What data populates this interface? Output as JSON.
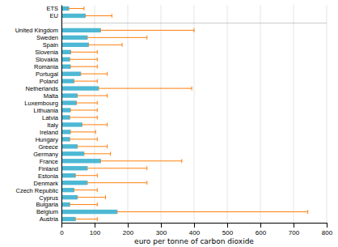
{
  "chart_data": {
    "type": "bar",
    "orientation": "horizontal",
    "categories": [
      "ETS",
      "EU",
      "United Kingdom",
      "Sweden",
      "Spain",
      "Slovenia",
      "Slovakia",
      "Romania",
      "Portugal",
      "Poland",
      "Netherlands",
      "Malta",
      "Luxembourg",
      "Lithuania",
      "Latvia",
      "Italy",
      "Ireland",
      "Hungary",
      "Greece",
      "Germany",
      "France",
      "Finland",
      "Estonia",
      "Denmark",
      "Czech Republic",
      "Cyprus",
      "Bulgaria",
      "Belgium",
      "Austria"
    ],
    "values": [
      22,
      72,
      118,
      78,
      82,
      28,
      25,
      27,
      58,
      38,
      112,
      48,
      45,
      27,
      25,
      62,
      27,
      25,
      48,
      68,
      118,
      78,
      42,
      78,
      38,
      48,
      25,
      168,
      42
    ],
    "error_high": [
      68,
      152,
      400,
      258,
      183,
      108,
      108,
      108,
      138,
      108,
      393,
      138,
      108,
      108,
      108,
      138,
      103,
      108,
      138,
      148,
      363,
      258,
      108,
      258,
      108,
      133,
      108,
      743,
      108
    ],
    "color": "#4db8d4",
    "xlabel": "euro per tonne of carbon dioxide",
    "xlim": [
      0,
      800
    ],
    "xticks": [
      0,
      100,
      200,
      300,
      400,
      500,
      600,
      700,
      800
    ],
    "grid": true
  }
}
